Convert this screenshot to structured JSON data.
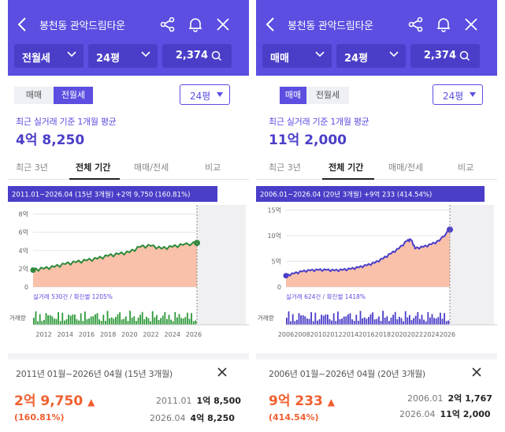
{
  "colors": {
    "accent": "#5b4ee0",
    "accent_dark": "#4a3ec8",
    "up": "#f06030",
    "area_fill": "#f9b69b",
    "volume_left": "#2e9a3a",
    "volume_right": "#4a3ec8"
  },
  "icons": {
    "back": "chevron-left-icon",
    "share": "share-icon",
    "bell": "bell-icon",
    "close": "close-icon",
    "search": "search-icon"
  },
  "left": {
    "title": "봉천동 관악드림타운",
    "type_select": "전월세",
    "area_select": "24평",
    "count": "2,374",
    "seg_sale": "매매",
    "seg_rent": "전월세",
    "pyeong_button": "24평",
    "subtitle": "최근 실거래 기준 1개월 평균",
    "price": "4억 8,250",
    "tabs": [
      "최근 3년",
      "전체 기간",
      "매매/전세",
      "비교"
    ],
    "tooltip": "2011.01~2026.04 (15년 3개월)  +2억 9,750 (160.81%)",
    "trade_info": "실거래 530건 / 확진썰 1205%",
    "volume_label": "거래량",
    "period": "2011년 01월~2026년 04월 (15년 3개월)",
    "change": "2억 9,750",
    "change_pct": "(160.81%)",
    "start_date": "2011.01",
    "start_value": "1억 8,500",
    "end_date": "2026.04",
    "end_value": "4억 8,250",
    "chart_data": {
      "type": "line",
      "yticks": [
        "8억",
        "6억",
        "4억",
        "2억",
        "0"
      ],
      "xticks": [
        "2012",
        "2014",
        "2016",
        "2018",
        "2020",
        "2022",
        "2024",
        "2026"
      ],
      "ylim": [
        0,
        9
      ],
      "x": [
        2011.0,
        2012,
        2013,
        2014,
        2015,
        2016,
        2017,
        2018,
        2019,
        2020,
        2021,
        2022,
        2023,
        2024,
        2025,
        2026.3
      ],
      "series": [
        {
          "values": [
            1.85,
            2.0,
            2.2,
            2.5,
            2.7,
            2.9,
            3.1,
            3.4,
            3.6,
            3.8,
            4.4,
            4.5,
            4.2,
            4.4,
            4.6,
            4.83
          ]
        }
      ]
    }
  },
  "right": {
    "title": "봉천동 관악드림타운",
    "type_select": "매매",
    "area_select": "24평",
    "count": "2,374",
    "seg_sale": "매매",
    "seg_rent": "전월세",
    "pyeong_button": "24평",
    "subtitle": "최근 실거래 기준 1개월 평균",
    "price": "11억 2,000",
    "tabs": [
      "최근 3년",
      "전체 기간",
      "매매/전세",
      "비교"
    ],
    "tooltip": "2006.01~2026.04 (20년 3개월)  +9억 233 (414.54%)",
    "trade_info": "실거래 624건 / 확진썰 1418%",
    "volume_label": "거래량",
    "period": "2006년 01월~2026년 04월 (20년 3개월)",
    "change": "9억 233",
    "change_pct": "(414.54%)",
    "start_date": "2006.01",
    "start_value": "2억 1,767",
    "end_date": "2026.04",
    "end_value": "11억 2,000",
    "chart_data": {
      "type": "line",
      "yticks": [
        "15억",
        "10억",
        "5억",
        "0"
      ],
      "xticks": [
        "2006",
        "2008",
        "2010",
        "2012",
        "2014",
        "2016",
        "2018",
        "2020",
        "2022",
        "2024",
        "2026"
      ],
      "ylim": [
        0,
        16
      ],
      "x": [
        2006.0,
        2007,
        2008,
        2009,
        2010,
        2011,
        2012,
        2013,
        2014,
        2015,
        2016,
        2017,
        2018,
        2019,
        2020,
        2021,
        2021.5,
        2022,
        2023,
        2024,
        2025,
        2026.3
      ],
      "series": [
        {
          "values": [
            2.2,
            2.6,
            3.0,
            3.2,
            3.3,
            3.3,
            3.2,
            3.3,
            3.5,
            3.8,
            4.2,
            4.7,
            5.5,
            6.5,
            7.5,
            9.0,
            9.2,
            7.5,
            7.8,
            8.3,
            9.0,
            11.2
          ]
        }
      ]
    }
  }
}
